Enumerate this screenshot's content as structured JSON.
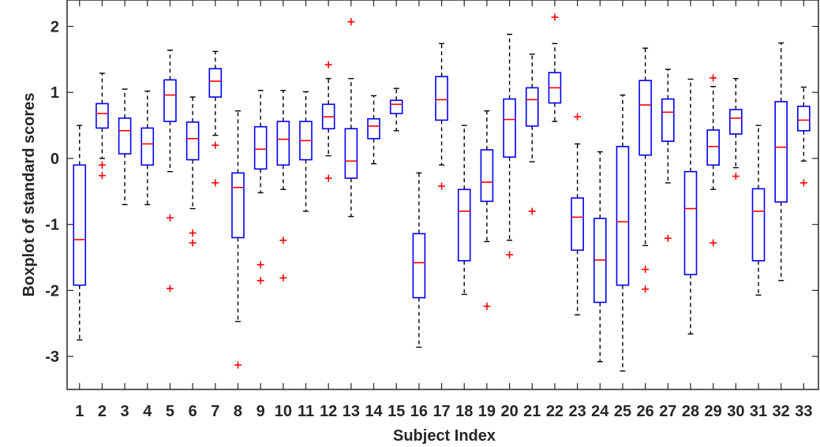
{
  "chart_data": {
    "type": "boxplot",
    "xlabel": "Subject Index",
    "ylabel": "Boxplot of standard scores",
    "ylim": [
      -3.5,
      2.4
    ],
    "yticks": [
      2,
      1,
      0,
      -1,
      -2,
      -3
    ],
    "ytick_labels": [
      "2",
      "1",
      "0",
      "-1",
      "-2",
      "-3"
    ],
    "grid": false,
    "colors": {
      "box": "#0000ff",
      "median": "#ff0000",
      "outlier": "#ff0000",
      "whisker": "#000000",
      "axis": "#262626"
    },
    "categories": [
      "1",
      "2",
      "3",
      "4",
      "5",
      "6",
      "7",
      "8",
      "9",
      "10",
      "11",
      "12",
      "13",
      "14",
      "15",
      "16",
      "17",
      "18",
      "19",
      "20",
      "21",
      "22",
      "23",
      "24",
      "25",
      "26",
      "27",
      "28",
      "29",
      "30",
      "31",
      "32",
      "33"
    ],
    "boxes": [
      {
        "whisker_low": -2.75,
        "q1": -1.92,
        "median": -1.23,
        "q3": -0.1,
        "whisker_high": 0.5,
        "outliers": []
      },
      {
        "whisker_low": 0.0,
        "q1": 0.46,
        "median": 0.68,
        "q3": 0.83,
        "whisker_high": 1.29,
        "outliers": [
          -0.1,
          -0.26
        ]
      },
      {
        "whisker_low": -0.7,
        "q1": 0.07,
        "median": 0.42,
        "q3": 0.61,
        "whisker_high": 1.05,
        "outliers": []
      },
      {
        "whisker_low": -0.7,
        "q1": -0.1,
        "median": 0.22,
        "q3": 0.46,
        "whisker_high": 1.02,
        "outliers": []
      },
      {
        "whisker_low": -0.2,
        "q1": 0.56,
        "median": 0.96,
        "q3": 1.19,
        "whisker_high": 1.64,
        "outliers": [
          -0.9,
          -1.97
        ]
      },
      {
        "whisker_low": -0.76,
        "q1": -0.02,
        "median": 0.3,
        "q3": 0.55,
        "whisker_high": 0.93,
        "outliers": [
          -1.13,
          -1.28
        ]
      },
      {
        "whisker_low": 0.35,
        "q1": 0.93,
        "median": 1.17,
        "q3": 1.36,
        "whisker_high": 1.62,
        "outliers": [
          0.2,
          -0.37
        ]
      },
      {
        "whisker_low": -2.47,
        "q1": -1.2,
        "median": -0.44,
        "q3": -0.22,
        "whisker_high": 0.72,
        "outliers": [
          -3.13
        ]
      },
      {
        "whisker_low": -0.52,
        "q1": -0.16,
        "median": 0.14,
        "q3": 0.48,
        "whisker_high": 1.03,
        "outliers": [
          -1.61,
          -1.85
        ]
      },
      {
        "whisker_low": -0.47,
        "q1": -0.1,
        "median": 0.29,
        "q3": 0.56,
        "whisker_high": 1.03,
        "outliers": [
          -1.24,
          -1.81
        ]
      },
      {
        "whisker_low": -0.8,
        "q1": -0.02,
        "median": 0.27,
        "q3": 0.56,
        "whisker_high": 1.01,
        "outliers": []
      },
      {
        "whisker_low": 0.04,
        "q1": 0.45,
        "median": 0.63,
        "q3": 0.82,
        "whisker_high": 1.21,
        "outliers": [
          1.42,
          -0.3
        ]
      },
      {
        "whisker_low": -0.88,
        "q1": -0.3,
        "median": -0.04,
        "q3": 0.45,
        "whisker_high": 1.21,
        "outliers": [
          2.07
        ]
      },
      {
        "whisker_low": -0.08,
        "q1": 0.3,
        "median": 0.49,
        "q3": 0.6,
        "whisker_high": 0.95,
        "outliers": []
      },
      {
        "whisker_low": 0.42,
        "q1": 0.68,
        "median": 0.82,
        "q3": 0.88,
        "whisker_high": 1.06,
        "outliers": []
      },
      {
        "whisker_low": -2.86,
        "q1": -2.11,
        "median": -1.58,
        "q3": -1.14,
        "whisker_high": -0.22,
        "outliers": []
      },
      {
        "whisker_low": -0.1,
        "q1": 0.58,
        "median": 0.89,
        "q3": 1.24,
        "whisker_high": 1.74,
        "outliers": [
          -0.42
        ]
      },
      {
        "whisker_low": -2.06,
        "q1": -1.55,
        "median": -0.8,
        "q3": -0.47,
        "whisker_high": 0.5,
        "outliers": []
      },
      {
        "whisker_low": -1.26,
        "q1": -0.65,
        "median": -0.36,
        "q3": 0.13,
        "whisker_high": 0.72,
        "outliers": [
          -2.24
        ]
      },
      {
        "whisker_low": -1.24,
        "q1": 0.02,
        "median": 0.59,
        "q3": 0.9,
        "whisker_high": 1.88,
        "outliers": [
          -1.46
        ]
      },
      {
        "whisker_low": -0.05,
        "q1": 0.49,
        "median": 0.89,
        "q3": 1.07,
        "whisker_high": 1.58,
        "outliers": [
          -0.8
        ]
      },
      {
        "whisker_low": 0.56,
        "q1": 0.84,
        "median": 1.07,
        "q3": 1.3,
        "whisker_high": 1.74,
        "outliers": [
          2.14
        ]
      },
      {
        "whisker_low": -2.37,
        "q1": -1.39,
        "median": -0.89,
        "q3": -0.6,
        "whisker_high": 0.22,
        "outliers": [
          0.63
        ]
      },
      {
        "whisker_low": -3.08,
        "q1": -2.18,
        "median": -1.54,
        "q3": -0.91,
        "whisker_high": 0.1,
        "outliers": []
      },
      {
        "whisker_low": -3.22,
        "q1": -1.92,
        "median": -0.96,
        "q3": 0.18,
        "whisker_high": 0.96,
        "outliers": []
      },
      {
        "whisker_low": -1.32,
        "q1": 0.05,
        "median": 0.81,
        "q3": 1.18,
        "whisker_high": 1.67,
        "outliers": [
          -1.68,
          -1.98
        ]
      },
      {
        "whisker_low": -0.37,
        "q1": 0.26,
        "median": 0.7,
        "q3": 0.9,
        "whisker_high": 1.35,
        "outliers": [
          -1.21
        ]
      },
      {
        "whisker_low": -2.66,
        "q1": -1.76,
        "median": -0.76,
        "q3": -0.2,
        "whisker_high": 1.2,
        "outliers": []
      },
      {
        "whisker_low": -0.47,
        "q1": -0.1,
        "median": 0.18,
        "q3": 0.43,
        "whisker_high": 1.09,
        "outliers": [
          1.22,
          -1.28
        ]
      },
      {
        "whisker_low": -0.14,
        "q1": 0.37,
        "median": 0.61,
        "q3": 0.74,
        "whisker_high": 1.21,
        "outliers": [
          -0.27
        ]
      },
      {
        "whisker_low": -2.07,
        "q1": -1.55,
        "median": -0.8,
        "q3": -0.46,
        "whisker_high": 0.5,
        "outliers": []
      },
      {
        "whisker_low": -1.85,
        "q1": -0.66,
        "median": 0.17,
        "q3": 0.86,
        "whisker_high": 1.75,
        "outliers": []
      },
      {
        "whisker_low": -0.04,
        "q1": 0.42,
        "median": 0.58,
        "q3": 0.79,
        "whisker_high": 1.08,
        "outliers": [
          -0.37
        ]
      }
    ]
  }
}
